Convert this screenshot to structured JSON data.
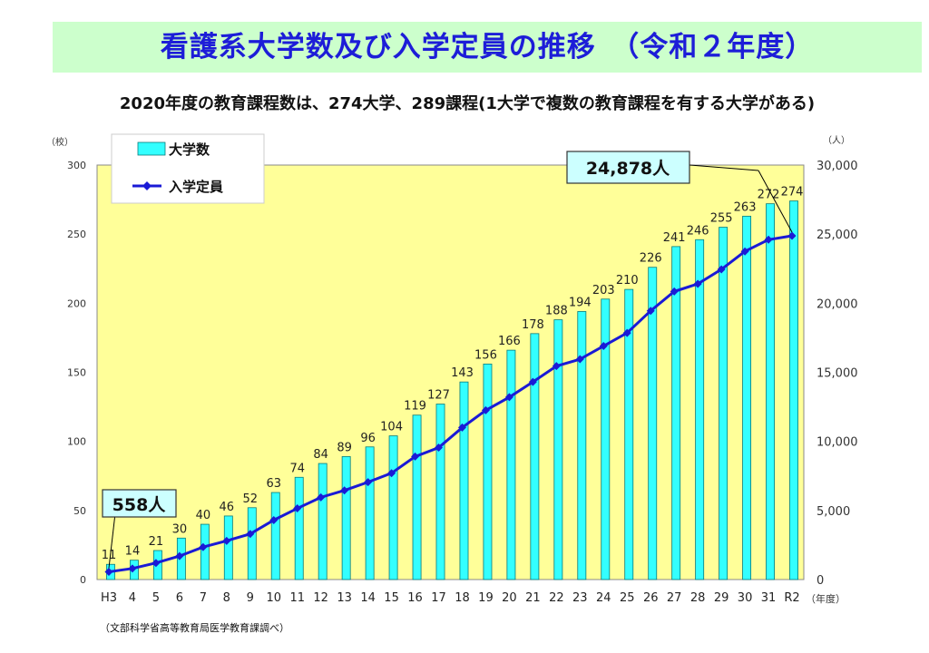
{
  "title": "看護系大学数及び入学定員の推移　（令和２年度）",
  "subtitle": "2020年度の教育課程数は、274大学、289課程(1大学で複数の教育課程を有する大学がある)",
  "source_note": "（文部科学省高等教育局医学教育課調べ）",
  "callouts": {
    "first": "558人",
    "last": "24,878人"
  },
  "colors": {
    "plot_bg": "#ffff99",
    "bar": "#33ffff",
    "bar_edge": "#0a7a7a",
    "line": "#1a1ad6",
    "title_bg": "#ccffcc",
    "title_text": "#1d1dd8"
  },
  "chart_data": {
    "type": "bar+line",
    "title": "看護系大学数及び入学定員の推移　（令和２年度）",
    "categories": [
      "H3",
      "4",
      "5",
      "6",
      "7",
      "8",
      "9",
      "10",
      "11",
      "12",
      "13",
      "14",
      "15",
      "16",
      "17",
      "18",
      "19",
      "20",
      "21",
      "22",
      "23",
      "24",
      "25",
      "26",
      "27",
      "28",
      "29",
      "30",
      "31",
      "R2"
    ],
    "x_unit": "（年度）",
    "y_left": {
      "unit": "（校）",
      "ylim": [
        0,
        300
      ],
      "ticks": [
        0,
        50,
        100,
        150,
        200,
        250,
        300
      ]
    },
    "y_right": {
      "unit": "（人）",
      "ylim": [
        0,
        30000
      ],
      "ticks": [
        "0",
        "5,000",
        "10,000",
        "15,000",
        "20,000",
        "25,000",
        "30,000"
      ]
    },
    "series": [
      {
        "name": "大学数",
        "type": "bar",
        "axis": "left",
        "values": [
          11,
          14,
          21,
          30,
          40,
          46,
          52,
          63,
          74,
          84,
          89,
          96,
          104,
          119,
          127,
          143,
          156,
          166,
          178,
          188,
          194,
          203,
          210,
          226,
          241,
          246,
          255,
          263,
          272,
          274
        ]
      },
      {
        "name": "入学定員",
        "type": "line",
        "axis": "right",
        "values": [
          558,
          800,
          1200,
          1700,
          2350,
          2800,
          3300,
          4300,
          5150,
          5950,
          6450,
          7050,
          7700,
          8900,
          9550,
          11000,
          12250,
          13200,
          14300,
          15450,
          15950,
          16900,
          17850,
          19450,
          20850,
          21400,
          22450,
          23750,
          24600,
          24878
        ]
      }
    ],
    "legend": "top-left",
    "grid": false
  }
}
